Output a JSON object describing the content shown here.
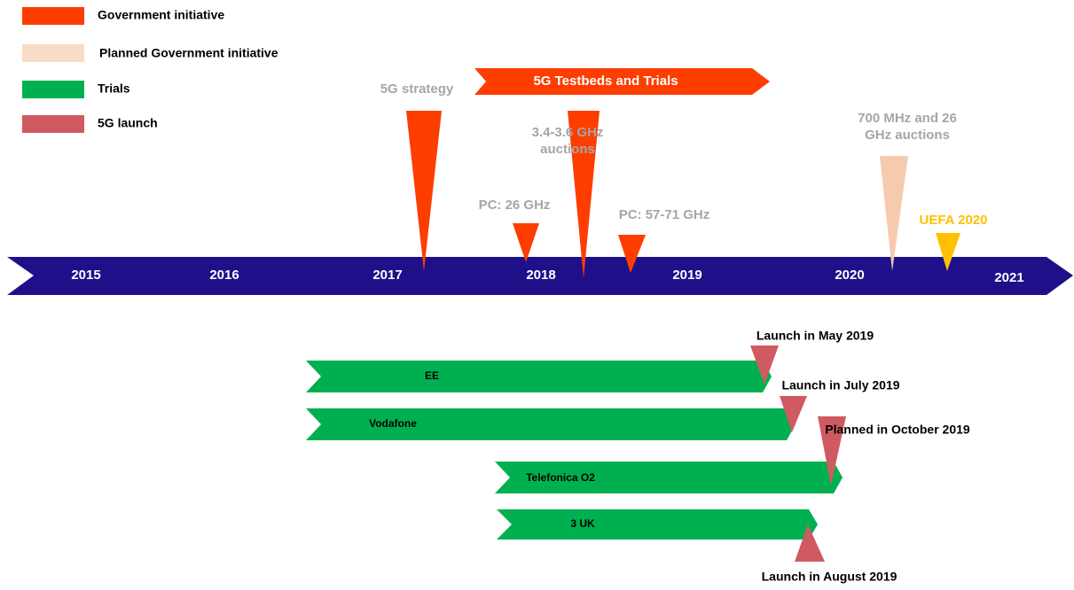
{
  "legend": [
    {
      "label": "Government initiative"
    },
    {
      "label": "Planned Government initiative"
    },
    {
      "label": "Trials"
    },
    {
      "label": "5G launch"
    }
  ],
  "timeline": {
    "years": [
      "2015",
      "2016",
      "2017",
      "2018",
      "2019",
      "2020",
      "2021"
    ]
  },
  "government_events": [
    {
      "lines": [
        "5G strategy"
      ]
    },
    {
      "lines": [
        "PC: 26 GHz"
      ]
    },
    {
      "lines": [
        "3.4-3.6 GHz",
        "auctions"
      ]
    },
    {
      "lines": [
        "PC: 57-71 GHz"
      ]
    },
    {
      "lines": [
        "700 MHz and 26",
        "GHz auctions"
      ]
    },
    {
      "lines": [
        "UEFA 2020"
      ]
    }
  ],
  "program": {
    "label": "5G Testbeds and Trials"
  },
  "trials": [
    {
      "operator": "EE"
    },
    {
      "operator": "Vodafone"
    },
    {
      "operator": "Telefonica O2"
    },
    {
      "operator": "3 UK"
    }
  ],
  "launches": [
    {
      "label": "Launch in May 2019"
    },
    {
      "label": "Launch in July 2019"
    },
    {
      "label": "Planned in October 2019"
    },
    {
      "label": "Launch in August 2019"
    }
  ]
}
